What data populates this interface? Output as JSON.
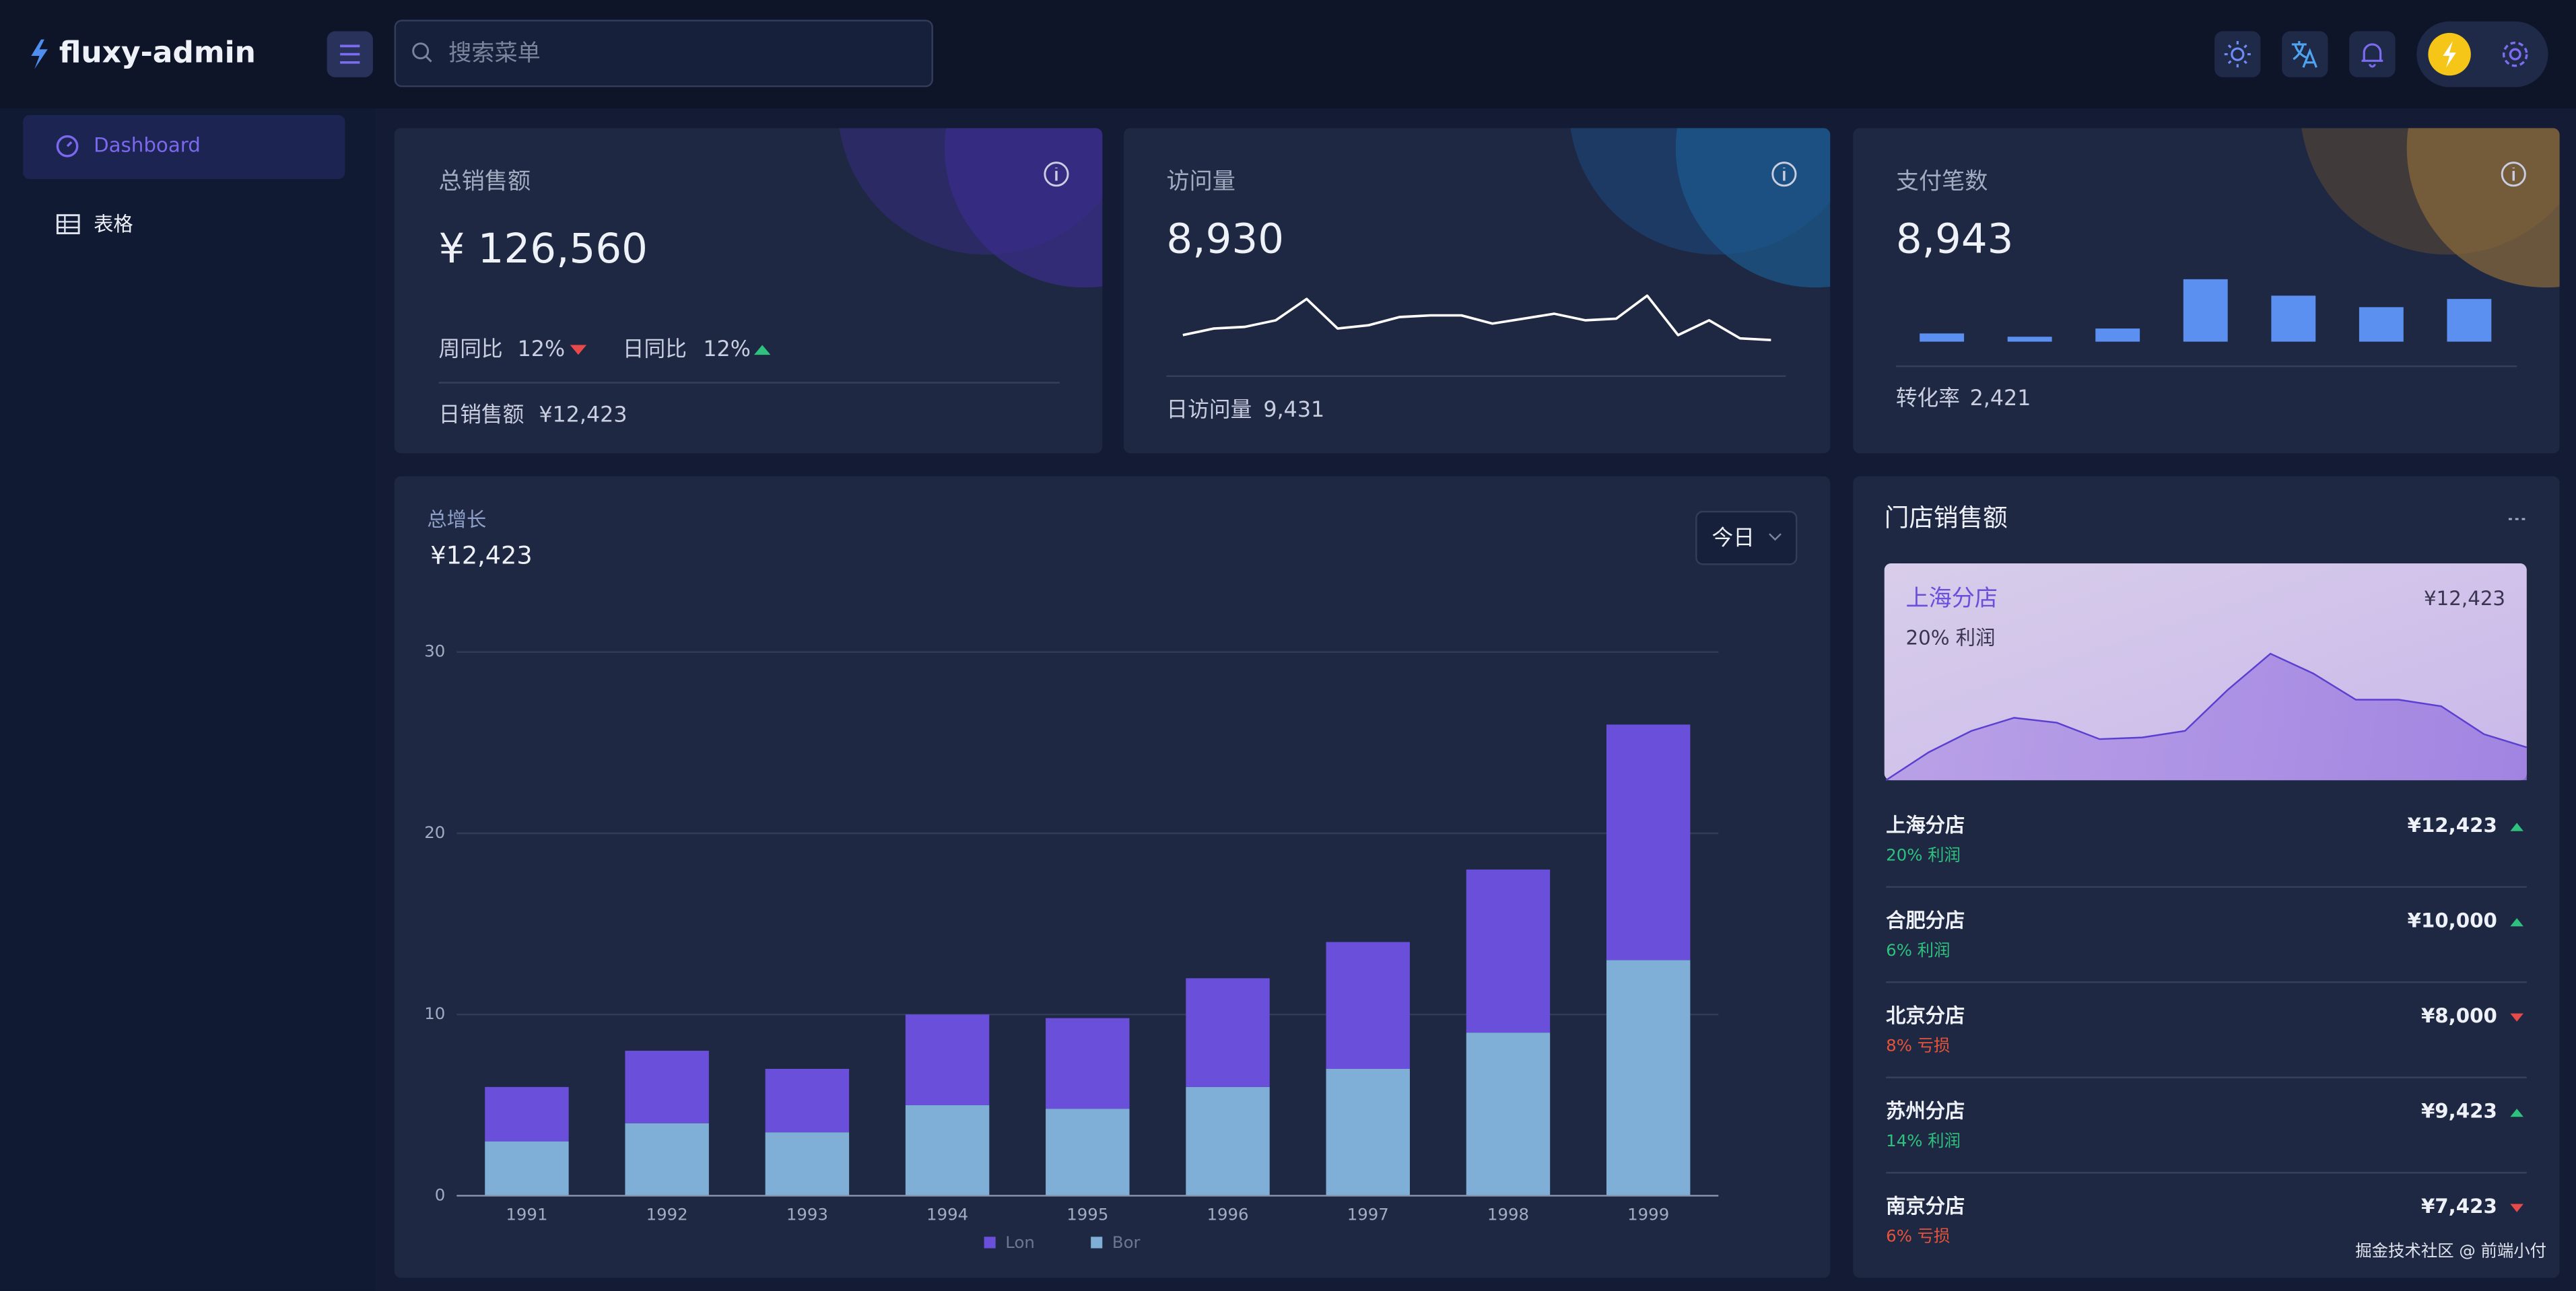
{
  "header": {
    "logo": "fluxy-admin",
    "search_placeholder": "搜索菜单"
  },
  "sidebar": {
    "items": [
      "Dashboard",
      "表格"
    ]
  },
  "cards": [
    {
      "title": "总销售额",
      "value": "¥ 126,560",
      "week_label": "周同比",
      "week_value": "12%",
      "day_label": "日同比",
      "day_value": "12%",
      "footer_label": "日销售额",
      "footer_value": "¥12,423"
    },
    {
      "title": "访问量",
      "value": "8,930",
      "trend": [
        3,
        7,
        8,
        12,
        25,
        7,
        9,
        14,
        15,
        15,
        10,
        13,
        16,
        12,
        13,
        27,
        3,
        12,
        1,
        0
      ],
      "footer_label": "日访问量",
      "footer_value": "9,431"
    },
    {
      "title": "支付笔数",
      "value": "8,943",
      "bars": [
        5,
        3,
        8,
        38,
        28,
        21,
        26
      ],
      "footer_label": "转化率",
      "footer_value": "2,421"
    }
  ],
  "growth": {
    "title": "总增长",
    "value": "¥12,423",
    "period": "今日",
    "chart_data": {
      "type": "bar",
      "stacked": true,
      "categories": [
        "1991",
        "1992",
        "1993",
        "1994",
        "1995",
        "1996",
        "1997",
        "1998",
        "1999"
      ],
      "series": [
        {
          "name": "Lon",
          "color": "#6a4fdb",
          "values": [
            3,
            4,
            3.5,
            5,
            5,
            6,
            7,
            9,
            13
          ]
        },
        {
          "name": "Bor",
          "color": "#7fafd6",
          "values": [
            3,
            4,
            3.5,
            5,
            4.8,
            6,
            7,
            9,
            13
          ]
        }
      ],
      "ylim": [
        0,
        30
      ],
      "yticks": [
        0,
        10,
        20,
        30
      ],
      "grid": true
    }
  },
  "stores": {
    "title": "门店销售额",
    "highlight": {
      "name": "上海分店",
      "amount": "¥12,423",
      "profit": "20% 利润",
      "trend": [
        0,
        17,
        30,
        38,
        35,
        25,
        26,
        30,
        55,
        77,
        65,
        49,
        49,
        45,
        28,
        20
      ]
    },
    "list": [
      {
        "name": "上海分店",
        "amount": "¥12,423",
        "profit": "20% 利润",
        "direction": "up"
      },
      {
        "name": "合肥分店",
        "amount": "¥10,000",
        "profit": "6% 利润",
        "direction": "up"
      },
      {
        "name": "北京分店",
        "amount": "¥8,000",
        "profit": "8% 亏损",
        "direction": "down"
      },
      {
        "name": "苏州分店",
        "amount": "¥9,423",
        "profit": "14% 利润",
        "direction": "up"
      },
      {
        "name": "南京分店",
        "amount": "¥7,423",
        "profit": "6% 亏损",
        "direction": "down"
      }
    ]
  },
  "footer": "掘金技术社区 @ 前端小付"
}
